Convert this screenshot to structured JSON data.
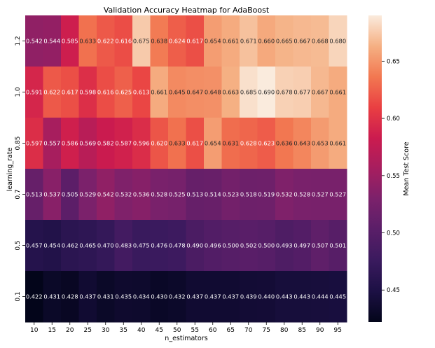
{
  "chart_data": {
    "type": "heatmap",
    "title": "Validation Accuracy Heatmap for AdaBoost",
    "xlabel": "n_estimators",
    "ylabel": "learning_rate",
    "x": [
      "10",
      "15",
      "20",
      "25",
      "30",
      "35",
      "40",
      "45",
      "50",
      "55",
      "60",
      "65",
      "70",
      "75",
      "80",
      "85",
      "90",
      "95"
    ],
    "y": [
      "1.2",
      "1.0",
      "0.85",
      "0.7",
      "0.5",
      "0.1"
    ],
    "values": [
      [
        0.542,
        0.544,
        0.585,
        0.633,
        0.622,
        0.616,
        0.675,
        0.638,
        0.624,
        0.617,
        0.654,
        0.661,
        0.671,
        0.66,
        0.665,
        0.667,
        0.668,
        0.68
      ],
      [
        0.591,
        0.622,
        0.617,
        0.598,
        0.616,
        0.625,
        0.613,
        0.661,
        0.645,
        0.647,
        0.648,
        0.663,
        0.685,
        0.69,
        0.678,
        0.677,
        0.667,
        0.661
      ],
      [
        0.597,
        0.557,
        0.586,
        0.569,
        0.582,
        0.587,
        0.596,
        0.62,
        0.633,
        0.617,
        0.654,
        0.631,
        0.628,
        0.623,
        0.636,
        0.643,
        0.653,
        0.661
      ],
      [
        0.513,
        0.537,
        0.505,
        0.529,
        0.542,
        0.532,
        0.536,
        0.528,
        0.525,
        0.513,
        0.514,
        0.523,
        0.518,
        0.519,
        0.532,
        0.528,
        0.527,
        0.527
      ],
      [
        0.457,
        0.454,
        0.462,
        0.465,
        0.47,
        0.483,
        0.475,
        0.476,
        0.478,
        0.49,
        0.496,
        0.5,
        0.502,
        0.5,
        0.493,
        0.497,
        0.507,
        0.501
      ],
      [
        0.422,
        0.431,
        0.428,
        0.437,
        0.431,
        0.435,
        0.434,
        0.43,
        0.432,
        0.437,
        0.437,
        0.437,
        0.439,
        0.44,
        0.443,
        0.443,
        0.444,
        0.445
      ]
    ],
    "colorbar": {
      "label": "Mean Test Score",
      "range": [
        0.422,
        0.69
      ],
      "ticks": [
        "0.45",
        "0.50",
        "0.55",
        "0.60",
        "0.65"
      ],
      "colormap": "rocket"
    },
    "cell_text_light": "#ffffff",
    "cell_text_dark": "#262626"
  }
}
